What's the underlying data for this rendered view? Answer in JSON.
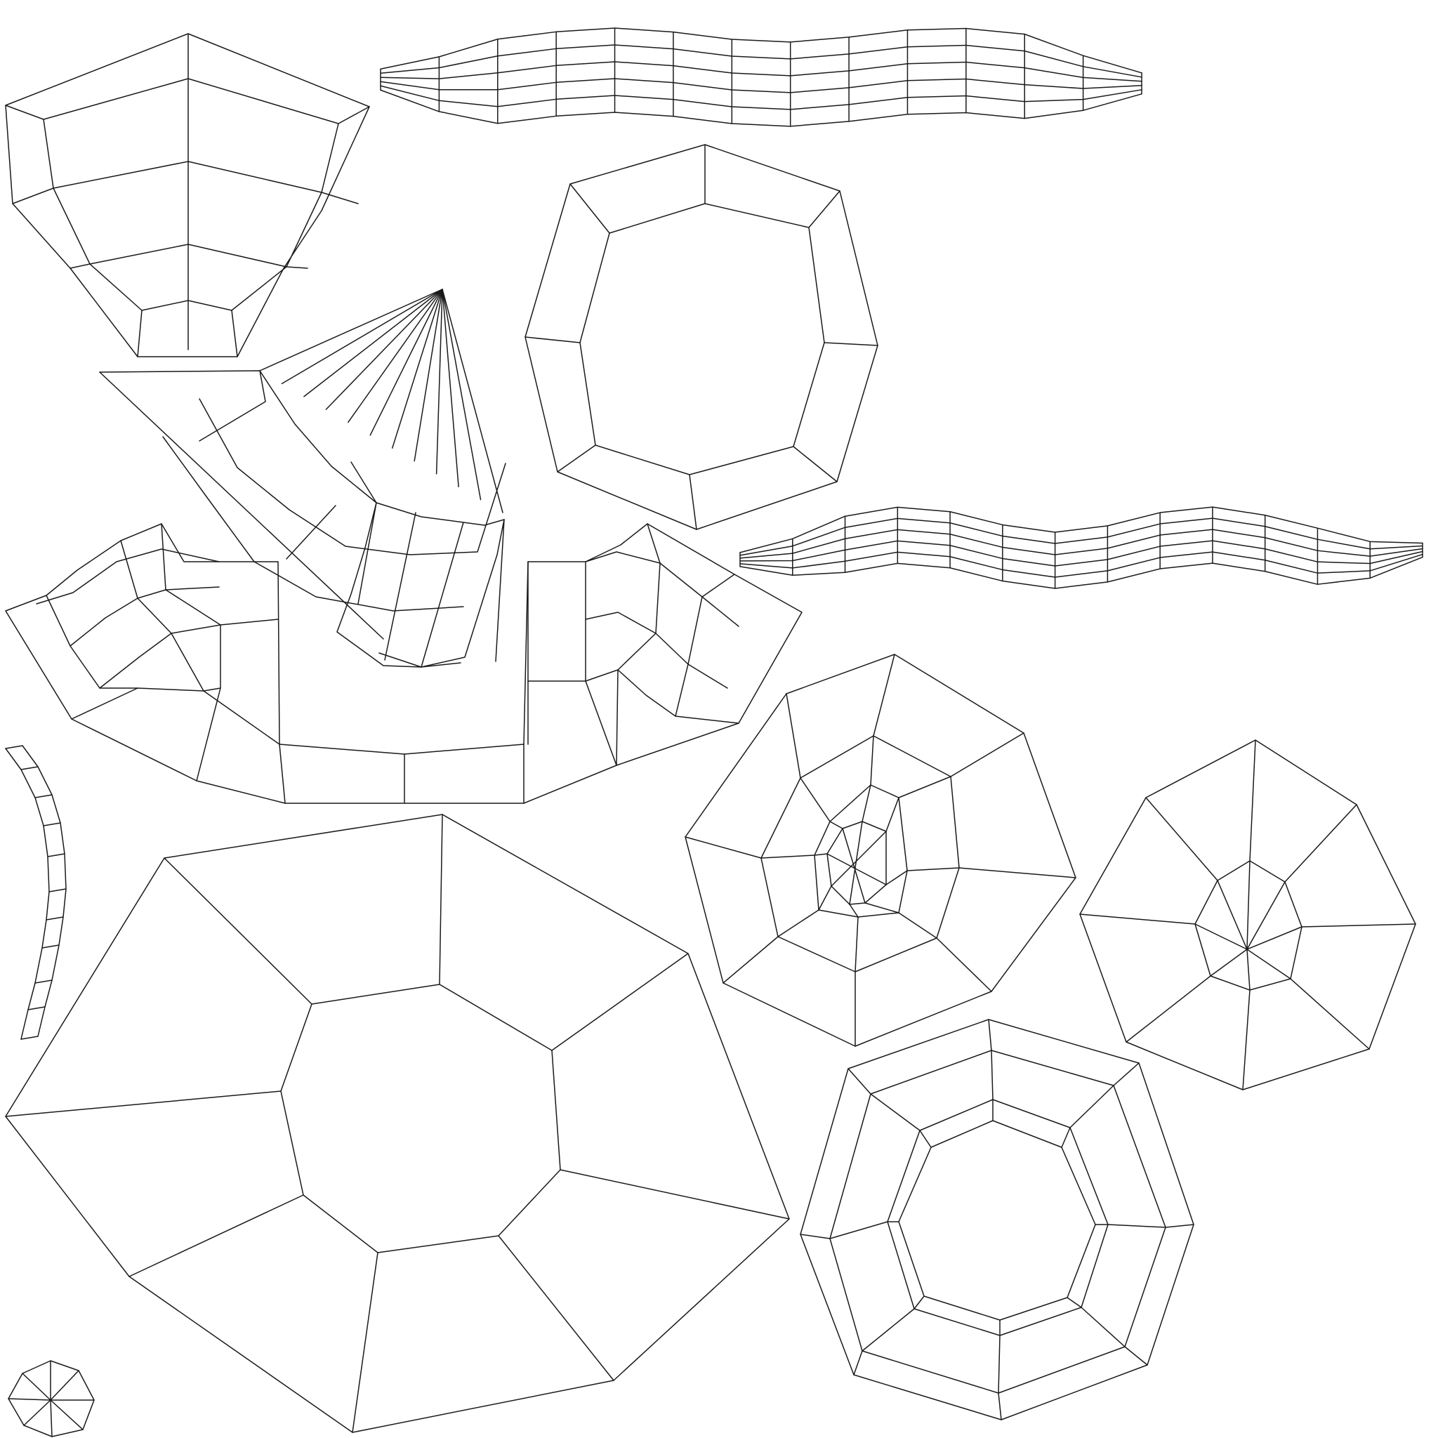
{
  "image": {
    "kind": "uv-layout-wireframe",
    "background_color": "#ffffff",
    "line_color": "#1a1a1a",
    "islands": [
      {
        "name": "shield-cap-island"
      },
      {
        "name": "long-strip-top-island"
      },
      {
        "name": "octagon-ring-island"
      },
      {
        "name": "fan-cone-island"
      },
      {
        "name": "long-strip-middle-island"
      },
      {
        "name": "curved-band-island"
      },
      {
        "name": "thin-arc-strip-island"
      },
      {
        "name": "octagon-web-island"
      },
      {
        "name": "octagon-star-island"
      },
      {
        "name": "large-octagon-island"
      },
      {
        "name": "double-octagon-ring-island"
      },
      {
        "name": "small-octagon-fan-island"
      }
    ]
  }
}
